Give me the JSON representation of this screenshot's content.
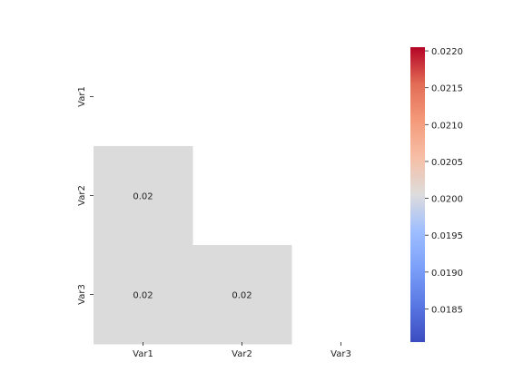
{
  "chart_data": {
    "type": "heatmap",
    "title": "",
    "xlabel": "",
    "ylabel": "",
    "rows": [
      "Var1",
      "Var2",
      "Var3"
    ],
    "cols": [
      "Var1",
      "Var2",
      "Var3"
    ],
    "mask": "upper-triangle-including-diagonal",
    "cells": [
      {
        "row": 1,
        "col": 0,
        "value": 0.02,
        "label": "0.02"
      },
      {
        "row": 2,
        "col": 0,
        "value": 0.02,
        "label": "0.02"
      },
      {
        "row": 2,
        "col": 1,
        "value": 0.02,
        "label": "0.02"
      }
    ],
    "cell_color": "#dbdbdb",
    "colorbar": {
      "colormap": "coolwarm",
      "min": 0.01805,
      "max": 0.02205,
      "ticks": [
        "0.0185",
        "0.0190",
        "0.0195",
        "0.0200",
        "0.0205",
        "0.0210",
        "0.0215",
        "0.0220"
      ],
      "tick_values": [
        0.0185,
        0.019,
        0.0195,
        0.02,
        0.0205,
        0.021,
        0.0215,
        0.022
      ]
    }
  }
}
